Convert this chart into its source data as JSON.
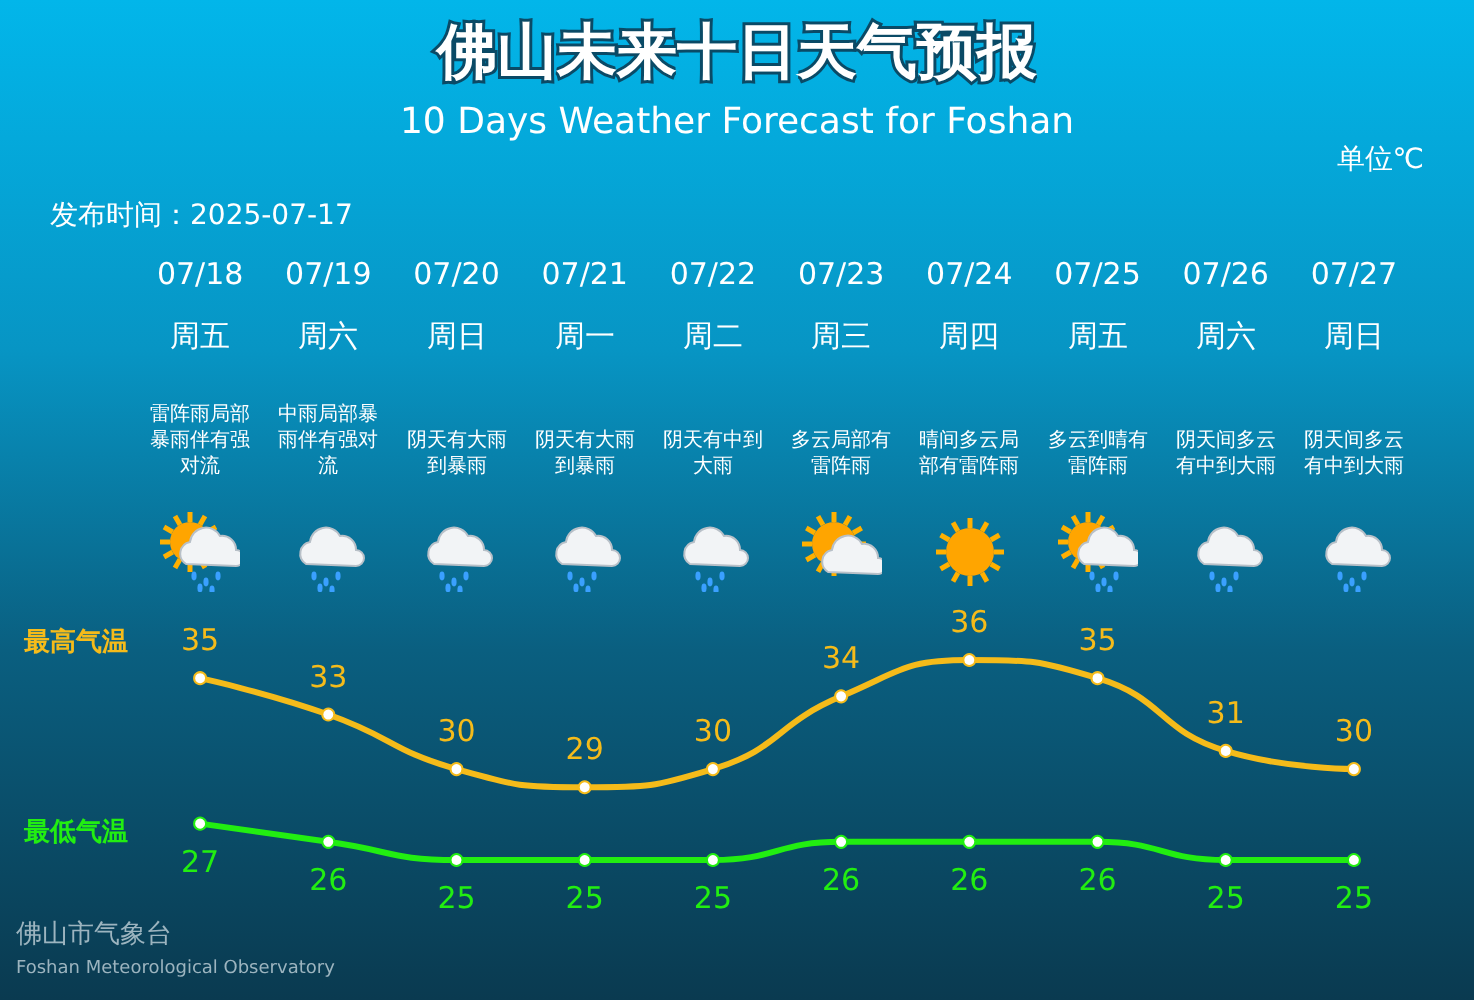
{
  "chart_data": {
    "type": "line",
    "title": "佛山未来十日天气预报",
    "subtitle": "10 Days Weather Forecast for Foshan",
    "annotations": [
      "单位℃",
      "发布时间：2025-07-17",
      "佛山市气象台",
      "Foshan Meteorological Observatory",
      "雷阵雨局部暴雨伴有强对流",
      "中雨局部暴雨伴有强对流",
      "阴天有大雨到暴雨",
      "阴天有大雨到暴雨",
      "阴天有中到大雨",
      "多云局部有雷阵雨",
      "晴间多云局部有雷阵雨",
      "多云到晴有雷阵雨",
      "阴天间多云有中到大雨",
      "阴天间多云有中到大雨"
    ],
    "categories": [
      "07/18\n周五",
      "07/19\n周六",
      "07/20\n周日",
      "07/21\n周一",
      "07/22\n周二",
      "07/23\n周三",
      "07/24\n周四",
      "07/25\n周五",
      "07/26\n周六",
      "07/27\n周日"
    ],
    "series": [
      {
        "name": "最高气温",
        "color": "#f5bb1a",
        "values": [
          35,
          33,
          30,
          29,
          30,
          34,
          36,
          35,
          31,
          30
        ]
      },
      {
        "name": "最低气温",
        "color": "#22ee11",
        "values": [
          27,
          26,
          25,
          25,
          25,
          26,
          26,
          26,
          25,
          25
        ]
      }
    ],
    "data_labels": true,
    "marker": "circle",
    "line_style": "solid",
    "grid": false
  }
}
